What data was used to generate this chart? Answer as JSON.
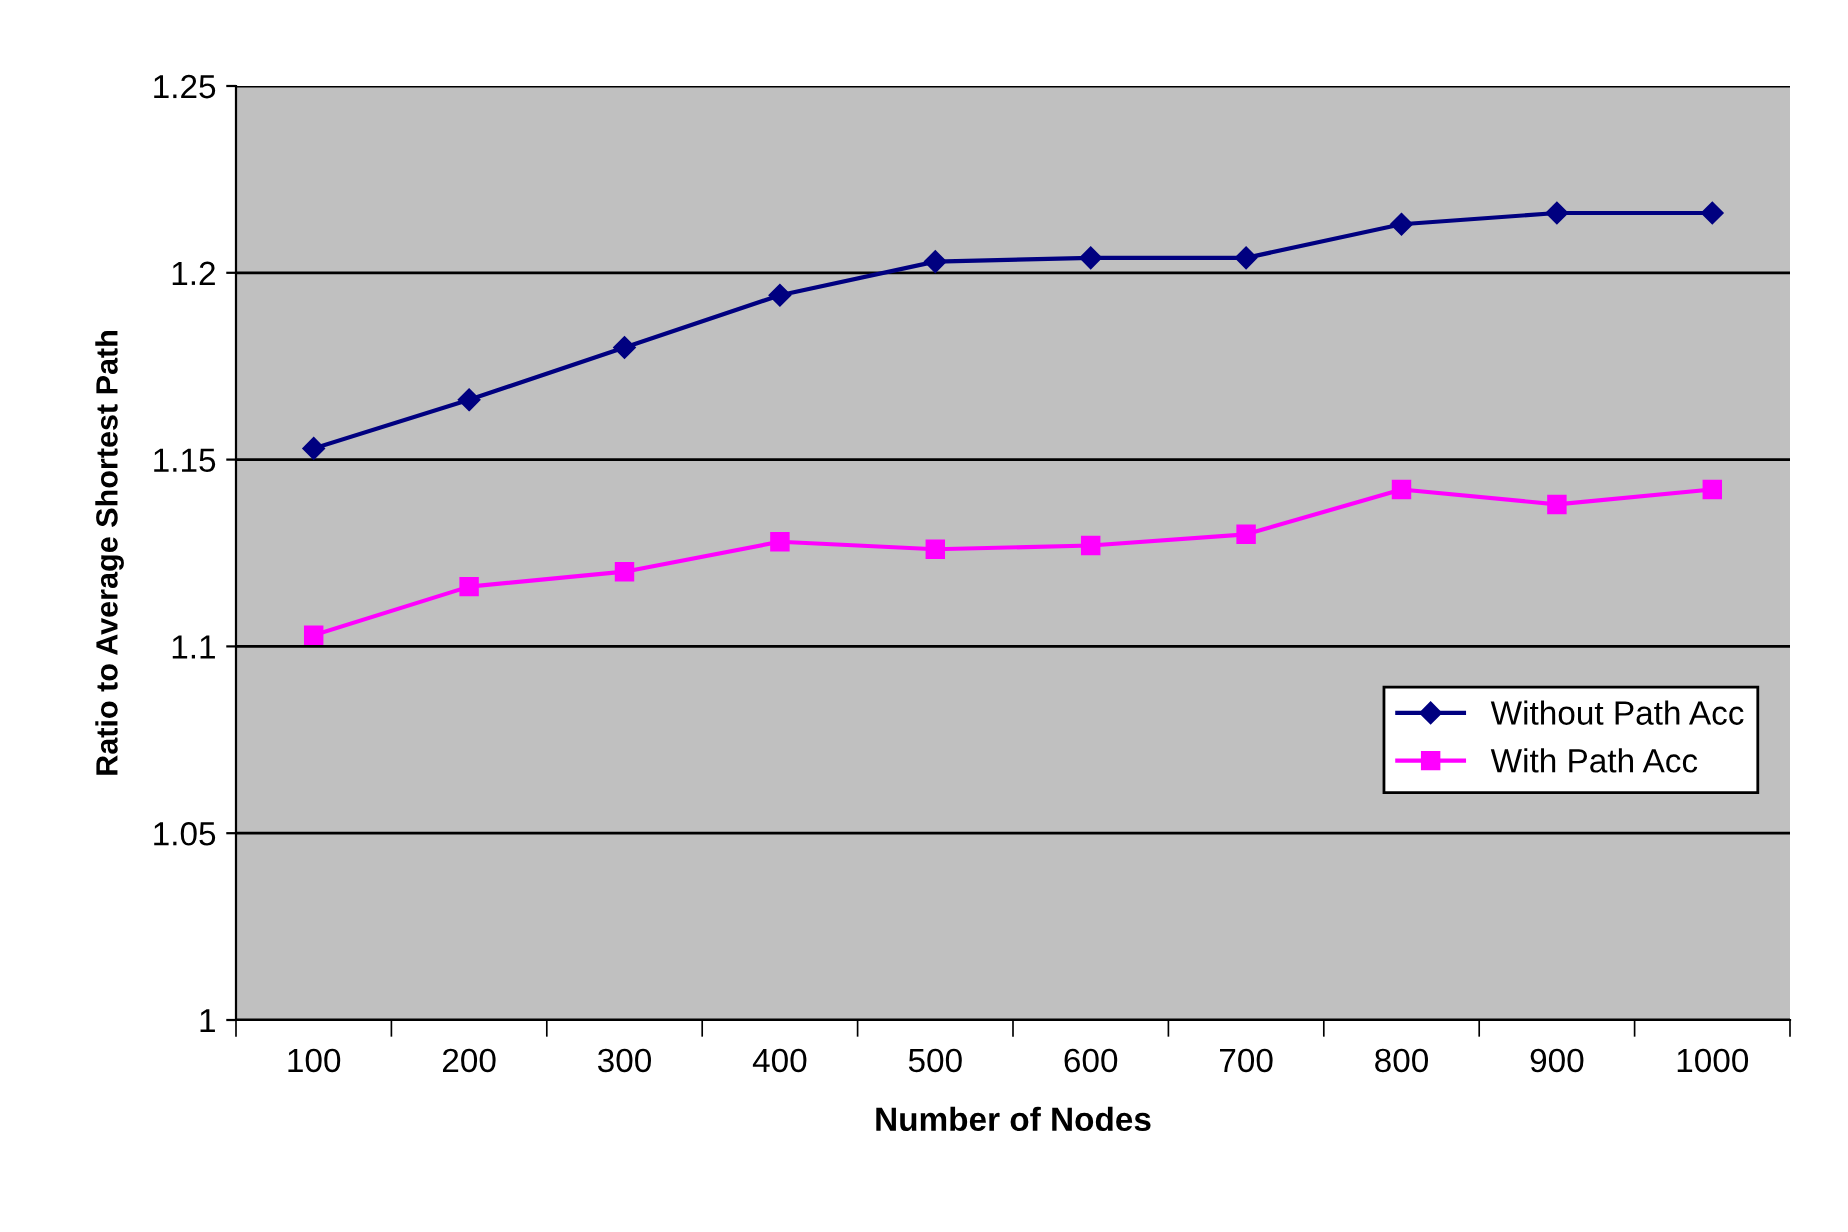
{
  "chart_data": {
    "type": "line",
    "xlabel": "Number of Nodes",
    "ylabel": "Ratio to Average Shortest Path",
    "categories": [
      "100",
      "200",
      "300",
      "400",
      "500",
      "600",
      "700",
      "800",
      "900",
      "1000"
    ],
    "series": [
      {
        "name": "Without Path Acc",
        "color": "#000080",
        "marker": "diamond",
        "values": [
          1.153,
          1.166,
          1.18,
          1.194,
          1.203,
          1.204,
          1.204,
          1.213,
          1.216,
          1.216
        ]
      },
      {
        "name": "With Path Acc",
        "color": "#ff00ff",
        "marker": "square",
        "values": [
          1.103,
          1.116,
          1.12,
          1.128,
          1.126,
          1.127,
          1.13,
          1.142,
          1.138,
          1.142
        ]
      }
    ],
    "ylim": [
      1,
      1.25
    ],
    "yticks": [
      1,
      1.05,
      1.1,
      1.15,
      1.2,
      1.25
    ],
    "grid": "y",
    "legend": "right"
  }
}
